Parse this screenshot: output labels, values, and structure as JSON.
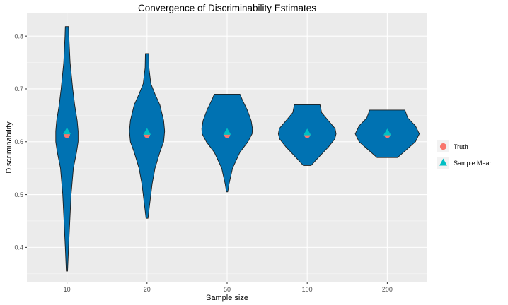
{
  "chart_data": {
    "type": "violin",
    "title": "Convergence of Discriminability Estimates",
    "xlabel": "Sample size",
    "ylabel": "Discriminability",
    "categories": [
      "10",
      "20",
      "50",
      "100",
      "200"
    ],
    "y_ticks": [
      "0.4",
      "0.5",
      "0.6",
      "0.7",
      "0.8"
    ],
    "ylim": [
      0.335,
      0.843
    ],
    "grid": true,
    "legend_position": "right",
    "violins": [
      {
        "category": "10",
        "min": 0.355,
        "max": 0.818,
        "width_profile": [
          [
            0.355,
            0.02
          ],
          [
            0.4,
            0.05
          ],
          [
            0.45,
            0.09
          ],
          [
            0.5,
            0.13
          ],
          [
            0.55,
            0.2
          ],
          [
            0.58,
            0.3
          ],
          [
            0.6,
            0.35
          ],
          [
            0.62,
            0.35
          ],
          [
            0.64,
            0.32
          ],
          [
            0.67,
            0.24
          ],
          [
            0.7,
            0.18
          ],
          [
            0.75,
            0.1
          ],
          [
            0.8,
            0.06
          ],
          [
            0.818,
            0.05
          ]
        ]
      },
      {
        "category": "20",
        "min": 0.455,
        "max": 0.767,
        "width_profile": [
          [
            0.455,
            0.03
          ],
          [
            0.48,
            0.08
          ],
          [
            0.52,
            0.16
          ],
          [
            0.55,
            0.25
          ],
          [
            0.58,
            0.4
          ],
          [
            0.6,
            0.52
          ],
          [
            0.62,
            0.55
          ],
          [
            0.64,
            0.52
          ],
          [
            0.67,
            0.4
          ],
          [
            0.69,
            0.25
          ],
          [
            0.71,
            0.12
          ],
          [
            0.74,
            0.06
          ],
          [
            0.767,
            0.05
          ]
        ]
      },
      {
        "category": "50",
        "min": 0.505,
        "max": 0.69,
        "width_profile": [
          [
            0.505,
            0.02
          ],
          [
            0.52,
            0.06
          ],
          [
            0.55,
            0.17
          ],
          [
            0.58,
            0.4
          ],
          [
            0.6,
            0.65
          ],
          [
            0.615,
            0.78
          ],
          [
            0.625,
            0.79
          ],
          [
            0.64,
            0.75
          ],
          [
            0.66,
            0.63
          ],
          [
            0.68,
            0.47
          ],
          [
            0.69,
            0.4
          ]
        ]
      },
      {
        "category": "100",
        "min": 0.555,
        "max": 0.67,
        "width_profile": [
          [
            0.555,
            0.12
          ],
          [
            0.57,
            0.35
          ],
          [
            0.59,
            0.66
          ],
          [
            0.605,
            0.86
          ],
          [
            0.615,
            0.9
          ],
          [
            0.625,
            0.87
          ],
          [
            0.64,
            0.66
          ],
          [
            0.655,
            0.45
          ],
          [
            0.67,
            0.4
          ]
        ]
      },
      {
        "category": "200",
        "min": 0.57,
        "max": 0.66,
        "width_profile": [
          [
            0.57,
            0.32
          ],
          [
            0.585,
            0.6
          ],
          [
            0.6,
            0.88
          ],
          [
            0.615,
            1.0
          ],
          [
            0.63,
            0.88
          ],
          [
            0.645,
            0.64
          ],
          [
            0.66,
            0.55
          ]
        ]
      }
    ],
    "series": [
      {
        "name": "Truth",
        "shape": "circle",
        "color": "#F8766D",
        "values": [
          0.613,
          0.613,
          0.613,
          0.613,
          0.613
        ]
      },
      {
        "name": "Sample Mean",
        "shape": "triangle",
        "color": "#00BFC4",
        "values": [
          0.619,
          0.618,
          0.618,
          0.617,
          0.617
        ]
      }
    ],
    "colors": {
      "violin_fill": "#0072B2",
      "violin_stroke": "#1d1d1d",
      "panel_bg": "#EBEBEB",
      "grid": "#FFFFFF"
    }
  }
}
